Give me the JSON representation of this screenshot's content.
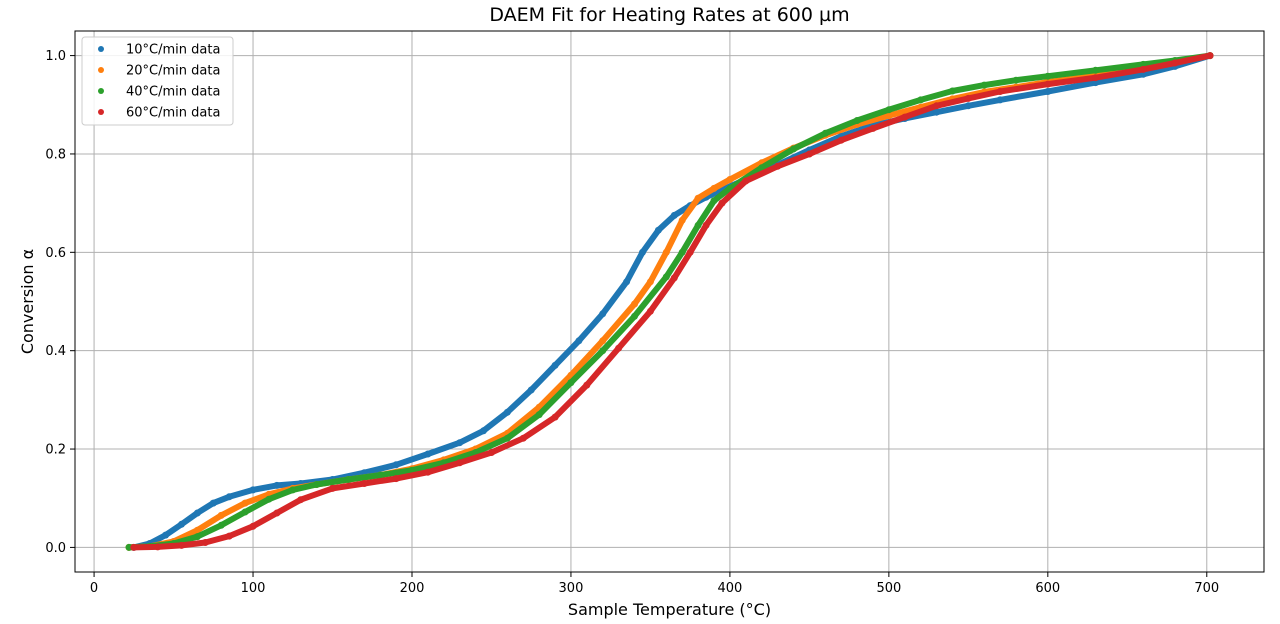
{
  "chart_data": {
    "type": "scatter",
    "title": "DAEM Fit for Heating Rates at 600 µm",
    "xlabel": "Sample Temperature (°C)",
    "ylabel": "Conversion α",
    "xlim": [
      -12,
      736
    ],
    "ylim": [
      -0.05,
      1.05
    ],
    "x_ticks": [
      0,
      100,
      200,
      300,
      400,
      500,
      600,
      700
    ],
    "y_ticks": [
      0.0,
      0.2,
      0.4,
      0.6,
      0.8,
      1.0
    ],
    "x_tick_labels": [
      "0",
      "100",
      "200",
      "300",
      "400",
      "500",
      "600",
      "700"
    ],
    "y_tick_labels": [
      "0.0",
      "0.2",
      "0.4",
      "0.6",
      "0.8",
      "1.0"
    ],
    "grid": true,
    "legend_position": "upper-left",
    "series": [
      {
        "name": "10°C/min data",
        "color": "#1f77b4",
        "x": [
          25,
          35,
          45,
          55,
          65,
          75,
          85,
          100,
          115,
          130,
          150,
          170,
          190,
          210,
          230,
          245,
          260,
          275,
          290,
          305,
          320,
          335,
          345,
          355,
          365,
          375,
          385,
          395,
          410,
          430,
          450,
          470,
          490,
          510,
          530,
          550,
          570,
          600,
          630,
          660,
          680,
          702
        ],
        "y": [
          0.0,
          0.008,
          0.025,
          0.047,
          0.07,
          0.09,
          0.103,
          0.117,
          0.126,
          0.13,
          0.138,
          0.152,
          0.168,
          0.19,
          0.213,
          0.237,
          0.275,
          0.32,
          0.37,
          0.42,
          0.475,
          0.54,
          0.6,
          0.645,
          0.675,
          0.695,
          0.712,
          0.727,
          0.748,
          0.778,
          0.808,
          0.836,
          0.858,
          0.872,
          0.885,
          0.898,
          0.91,
          0.927,
          0.945,
          0.962,
          0.978,
          1.0
        ]
      },
      {
        "name": "20°C/min data",
        "color": "#ff7f0e",
        "x": [
          22,
          35,
          50,
          65,
          80,
          95,
          110,
          125,
          140,
          160,
          180,
          200,
          220,
          240,
          260,
          280,
          300,
          320,
          340,
          350,
          360,
          370,
          380,
          390,
          400,
          420,
          440,
          460,
          480,
          500,
          520,
          540,
          560,
          580,
          600,
          630,
          660,
          680,
          702
        ],
        "y": [
          0.0,
          0.002,
          0.012,
          0.035,
          0.065,
          0.09,
          0.108,
          0.12,
          0.128,
          0.138,
          0.147,
          0.16,
          0.178,
          0.2,
          0.232,
          0.285,
          0.35,
          0.42,
          0.495,
          0.54,
          0.6,
          0.665,
          0.71,
          0.73,
          0.748,
          0.782,
          0.812,
          0.838,
          0.86,
          0.878,
          0.895,
          0.912,
          0.926,
          0.936,
          0.946,
          0.959,
          0.974,
          0.986,
          1.0
        ]
      },
      {
        "name": "40°C/min data",
        "color": "#2ca02c",
        "x": [
          22,
          35,
          50,
          65,
          80,
          95,
          110,
          125,
          140,
          160,
          180,
          200,
          220,
          240,
          260,
          280,
          300,
          320,
          340,
          360,
          370,
          380,
          390,
          400,
          420,
          440,
          460,
          480,
          500,
          520,
          540,
          560,
          580,
          600,
          630,
          660,
          680,
          702
        ],
        "y": [
          0.0,
          0.002,
          0.008,
          0.022,
          0.045,
          0.072,
          0.098,
          0.117,
          0.128,
          0.138,
          0.147,
          0.157,
          0.172,
          0.193,
          0.222,
          0.27,
          0.335,
          0.4,
          0.47,
          0.55,
          0.6,
          0.655,
          0.705,
          0.73,
          0.772,
          0.81,
          0.842,
          0.868,
          0.89,
          0.91,
          0.928,
          0.94,
          0.95,
          0.958,
          0.97,
          0.982,
          0.99,
          1.0
        ]
      },
      {
        "name": "60°C/min data",
        "color": "#d62728",
        "x": [
          25,
          40,
          55,
          70,
          85,
          100,
          115,
          130,
          150,
          170,
          190,
          210,
          230,
          250,
          270,
          290,
          310,
          330,
          350,
          365,
          375,
          385,
          395,
          410,
          430,
          450,
          470,
          490,
          510,
          530,
          550,
          570,
          600,
          630,
          660,
          680,
          702
        ],
        "y": [
          0.0,
          0.001,
          0.004,
          0.01,
          0.023,
          0.043,
          0.07,
          0.097,
          0.12,
          0.13,
          0.14,
          0.153,
          0.172,
          0.193,
          0.222,
          0.265,
          0.33,
          0.405,
          0.48,
          0.548,
          0.6,
          0.655,
          0.7,
          0.745,
          0.775,
          0.8,
          0.828,
          0.852,
          0.875,
          0.898,
          0.913,
          0.927,
          0.942,
          0.955,
          0.972,
          0.985,
          1.0
        ]
      }
    ]
  }
}
